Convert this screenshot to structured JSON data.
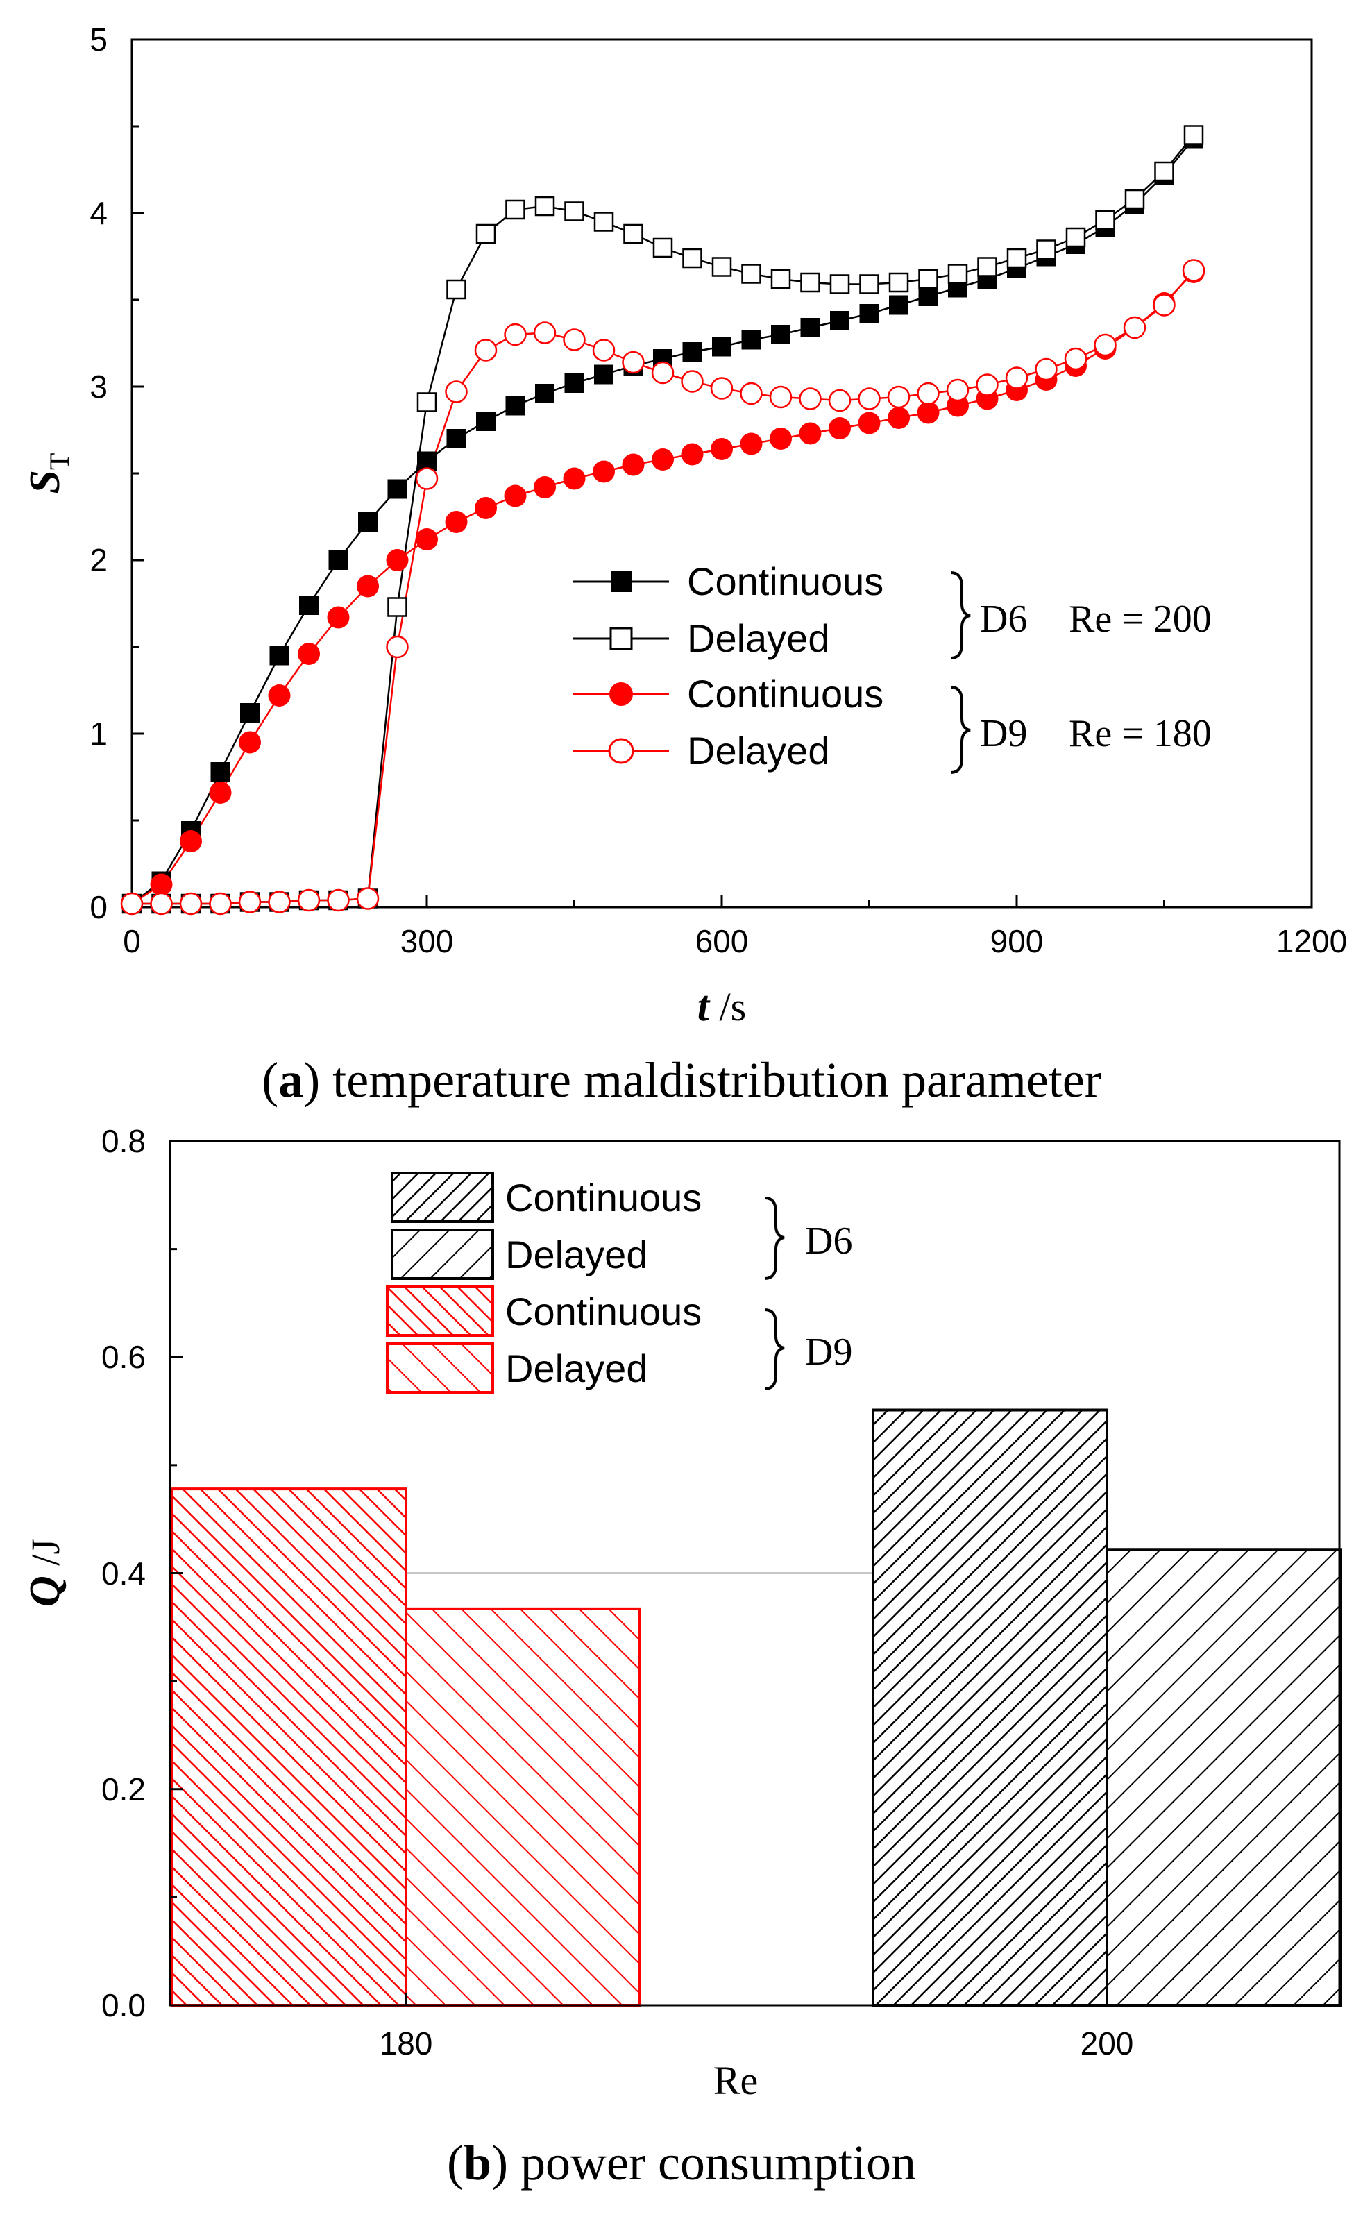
{
  "chart_data": [
    {
      "type": "line",
      "caption_letter": "a",
      "caption_text": ") temperature maldistribution parameter",
      "xlabel_symbol": "t",
      "xlabel_unit": " /s",
      "ylabel_symbol": "S",
      "ylabel_sub": "T",
      "xlim": [
        0,
        1200
      ],
      "ylim": [
        0,
        5
      ],
      "xticks": [
        "0",
        "300",
        "600",
        "900",
        "1200"
      ],
      "yticks": [
        "0",
        "1",
        "2",
        "3",
        "4",
        "5"
      ],
      "grid": false,
      "legend_position": "center-right",
      "group_labels": [
        {
          "name": "D6",
          "re": "Re = 200"
        },
        {
          "name": "D9",
          "re": "Re = 180"
        }
      ],
      "series": [
        {
          "name": "Continuous",
          "group": "D6",
          "color": "#000000",
          "marker": "filled-square",
          "x": [
            0,
            30,
            60,
            90,
            120,
            150,
            180,
            210,
            240,
            270,
            300,
            330,
            360,
            390,
            420,
            450,
            480,
            510,
            540,
            570,
            600,
            630,
            660,
            690,
            720,
            750,
            780,
            810,
            840,
            870,
            900,
            930,
            960,
            990,
            1020,
            1050,
            1080
          ],
          "y": [
            0.02,
            0.15,
            0.44,
            0.78,
            1.12,
            1.45,
            1.74,
            2.0,
            2.22,
            2.41,
            2.57,
            2.7,
            2.8,
            2.89,
            2.96,
            3.02,
            3.07,
            3.12,
            3.16,
            3.2,
            3.23,
            3.27,
            3.3,
            3.34,
            3.38,
            3.42,
            3.47,
            3.52,
            3.57,
            3.62,
            3.68,
            3.75,
            3.82,
            3.92,
            4.05,
            4.22,
            4.43
          ]
        },
        {
          "name": "Delayed",
          "group": "D6",
          "color": "#000000",
          "marker": "open-square",
          "x": [
            0,
            30,
            60,
            90,
            120,
            150,
            180,
            210,
            240,
            270,
            300,
            330,
            360,
            390,
            420,
            450,
            480,
            510,
            540,
            570,
            600,
            630,
            660,
            690,
            720,
            750,
            780,
            810,
            840,
            870,
            900,
            930,
            960,
            990,
            1020,
            1050,
            1080
          ],
          "y": [
            0.02,
            0.02,
            0.02,
            0.02,
            0.03,
            0.03,
            0.04,
            0.04,
            0.05,
            1.73,
            2.91,
            3.56,
            3.88,
            4.02,
            4.04,
            4.01,
            3.95,
            3.88,
            3.8,
            3.74,
            3.69,
            3.65,
            3.62,
            3.6,
            3.59,
            3.59,
            3.6,
            3.62,
            3.65,
            3.69,
            3.74,
            3.79,
            3.86,
            3.96,
            4.08,
            4.24,
            4.45
          ]
        },
        {
          "name": "Continuous",
          "group": "D9",
          "color": "#ff0000",
          "marker": "filled-circle",
          "x": [
            0,
            30,
            60,
            90,
            120,
            150,
            180,
            210,
            240,
            270,
            300,
            330,
            360,
            390,
            420,
            450,
            480,
            510,
            540,
            570,
            600,
            630,
            660,
            690,
            720,
            750,
            780,
            810,
            840,
            870,
            900,
            930,
            960,
            990,
            1020,
            1050,
            1080
          ],
          "y": [
            0.02,
            0.13,
            0.38,
            0.66,
            0.95,
            1.22,
            1.46,
            1.67,
            1.85,
            2.0,
            2.12,
            2.22,
            2.3,
            2.37,
            2.42,
            2.47,
            2.51,
            2.55,
            2.58,
            2.61,
            2.64,
            2.67,
            2.7,
            2.73,
            2.76,
            2.79,
            2.82,
            2.85,
            2.89,
            2.93,
            2.98,
            3.04,
            3.12,
            3.22,
            3.34,
            3.48,
            3.66
          ]
        },
        {
          "name": "Delayed",
          "group": "D9",
          "color": "#ff0000",
          "marker": "open-circle",
          "x": [
            0,
            30,
            60,
            90,
            120,
            150,
            180,
            210,
            240,
            270,
            300,
            330,
            360,
            390,
            420,
            450,
            480,
            510,
            540,
            570,
            600,
            630,
            660,
            690,
            720,
            750,
            780,
            810,
            840,
            870,
            900,
            930,
            960,
            990,
            1020,
            1050,
            1080
          ],
          "y": [
            0.02,
            0.02,
            0.02,
            0.02,
            0.03,
            0.03,
            0.04,
            0.04,
            0.05,
            1.5,
            2.47,
            2.97,
            3.21,
            3.3,
            3.31,
            3.27,
            3.21,
            3.14,
            3.08,
            3.03,
            2.99,
            2.96,
            2.94,
            2.93,
            2.92,
            2.93,
            2.94,
            2.96,
            2.98,
            3.01,
            3.05,
            3.1,
            3.16,
            3.24,
            3.34,
            3.47,
            3.67
          ]
        }
      ]
    },
    {
      "type": "bar",
      "caption_letter": "b",
      "caption_text": ") power consumption",
      "xlabel": "Re",
      "ylabel_symbol": "Q",
      "ylabel_unit": " /J",
      "categories": [
        "180",
        "200"
      ],
      "ylim": [
        0,
        0.8
      ],
      "yticks": [
        "0.0",
        "0.2",
        "0.4",
        "0.6",
        "0.8"
      ],
      "grid": false,
      "reference_line": 0.4,
      "legend_position": "top-center",
      "group_labels": [
        "D6",
        "D9"
      ],
      "legend": [
        {
          "name": "Continuous",
          "group": "D6",
          "color": "#000000",
          "hatch": "dense"
        },
        {
          "name": "Delayed",
          "group": "D6",
          "color": "#000000",
          "hatch": "sparse"
        },
        {
          "name": "Continuous",
          "group": "D9",
          "color": "#ff0000",
          "hatch": "dense-back"
        },
        {
          "name": "Delayed",
          "group": "D9",
          "color": "#ff0000",
          "hatch": "sparse-back"
        }
      ],
      "bars": [
        {
          "category": "180",
          "series": "Continuous",
          "group": "D9",
          "value": 0.478
        },
        {
          "category": "180",
          "series": "Delayed",
          "group": "D9",
          "value": 0.367
        },
        {
          "category": "200",
          "series": "Continuous",
          "group": "D6",
          "value": 0.551
        },
        {
          "category": "200",
          "series": "Delayed",
          "group": "D6",
          "value": 0.422
        }
      ]
    }
  ]
}
